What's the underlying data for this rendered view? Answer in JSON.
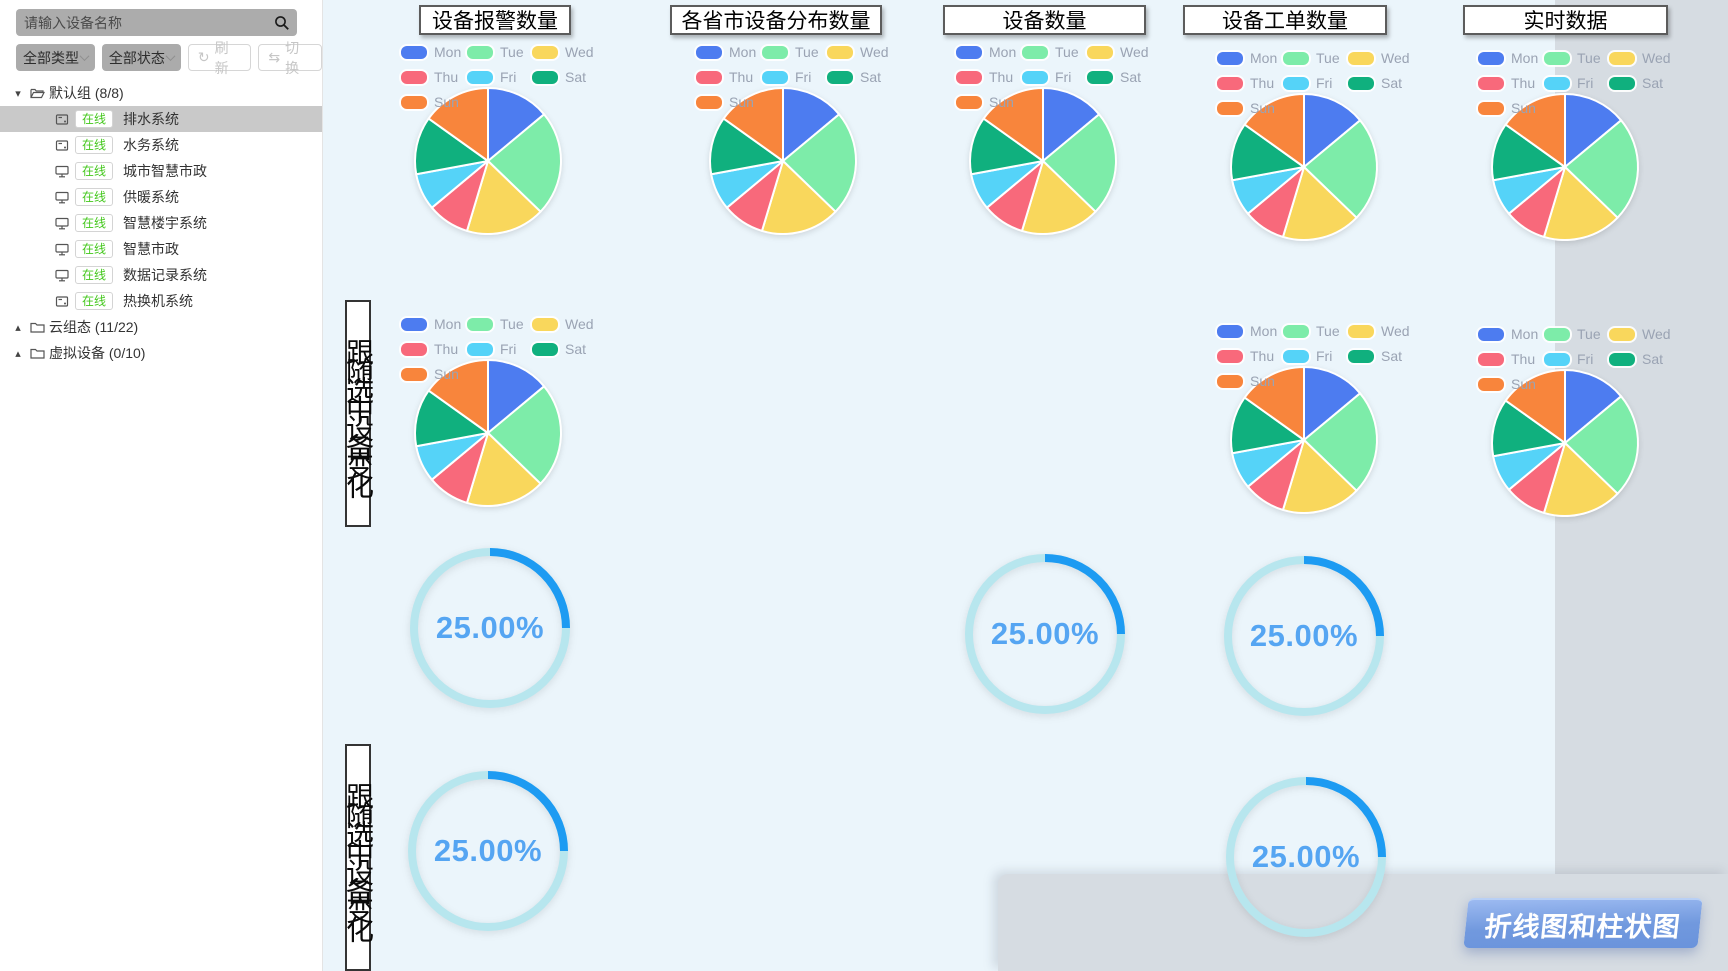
{
  "sidebar": {
    "search_placeholder": "请输入设备名称",
    "filters": {
      "type_label": "全部类型",
      "status_label": "全部状态",
      "refresh_label": "刷新",
      "switch_label": "切换"
    },
    "status_online_color": "#45c81e",
    "groups": [
      {
        "name": "默认组 (8/8)",
        "expanded": true,
        "items": [
          {
            "icon": "device-box",
            "status": "在线",
            "name": "排水系统",
            "selected": true
          },
          {
            "icon": "device-box",
            "status": "在线",
            "name": "水务系统",
            "selected": false
          },
          {
            "icon": "monitor",
            "status": "在线",
            "name": "城市智慧市政",
            "selected": false
          },
          {
            "icon": "monitor",
            "status": "在线",
            "name": "供暖系统",
            "selected": false
          },
          {
            "icon": "monitor",
            "status": "在线",
            "name": "智慧楼宇系统",
            "selected": false
          },
          {
            "icon": "monitor",
            "status": "在线",
            "name": "智慧市政",
            "selected": false
          },
          {
            "icon": "monitor",
            "status": "在线",
            "name": "数据记录系统",
            "selected": false
          },
          {
            "icon": "device-box",
            "status": "在线",
            "name": "热换机系统",
            "selected": false
          }
        ]
      },
      {
        "name": "云组态 (11/22)",
        "expanded": false,
        "items": []
      },
      {
        "name": "虚拟设备 (0/10)",
        "expanded": false,
        "items": []
      }
    ]
  },
  "canvas": {
    "panel_titles": [
      "设备报警数量",
      "各省市设备分布数量",
      "设备数量",
      "设备工单数量",
      "实时数据"
    ],
    "vertical_labels": [
      "跟随选中设备变化",
      "跟随选中设备变化"
    ],
    "banner_label": "折线图和柱状图",
    "background_color": "#ebf5fb",
    "side_panel_color": "#d6dce2"
  },
  "chart_data": [
    {
      "type": "pie",
      "categories": [
        "Mon",
        "Tue",
        "Wed",
        "Thu",
        "Fri",
        "Sat",
        "Sun"
      ],
      "values": [
        120,
        200,
        150,
        80,
        70,
        110,
        130
      ],
      "colors": [
        "#4d7cf0",
        "#7deca9",
        "#f9d75c",
        "#f8697b",
        "#55d3f8",
        "#10b07e",
        "#f8853c"
      ],
      "legend_position": "top",
      "legend_text_color": "#9aa3b3",
      "instances": 8
    },
    {
      "type": "gauge",
      "label": "25.00%",
      "value": 25,
      "max": 100,
      "ring_color": "#b7e6ee",
      "progress_color": "#1d9bf2",
      "text_color": "#55a5f2",
      "instances": 5
    }
  ]
}
